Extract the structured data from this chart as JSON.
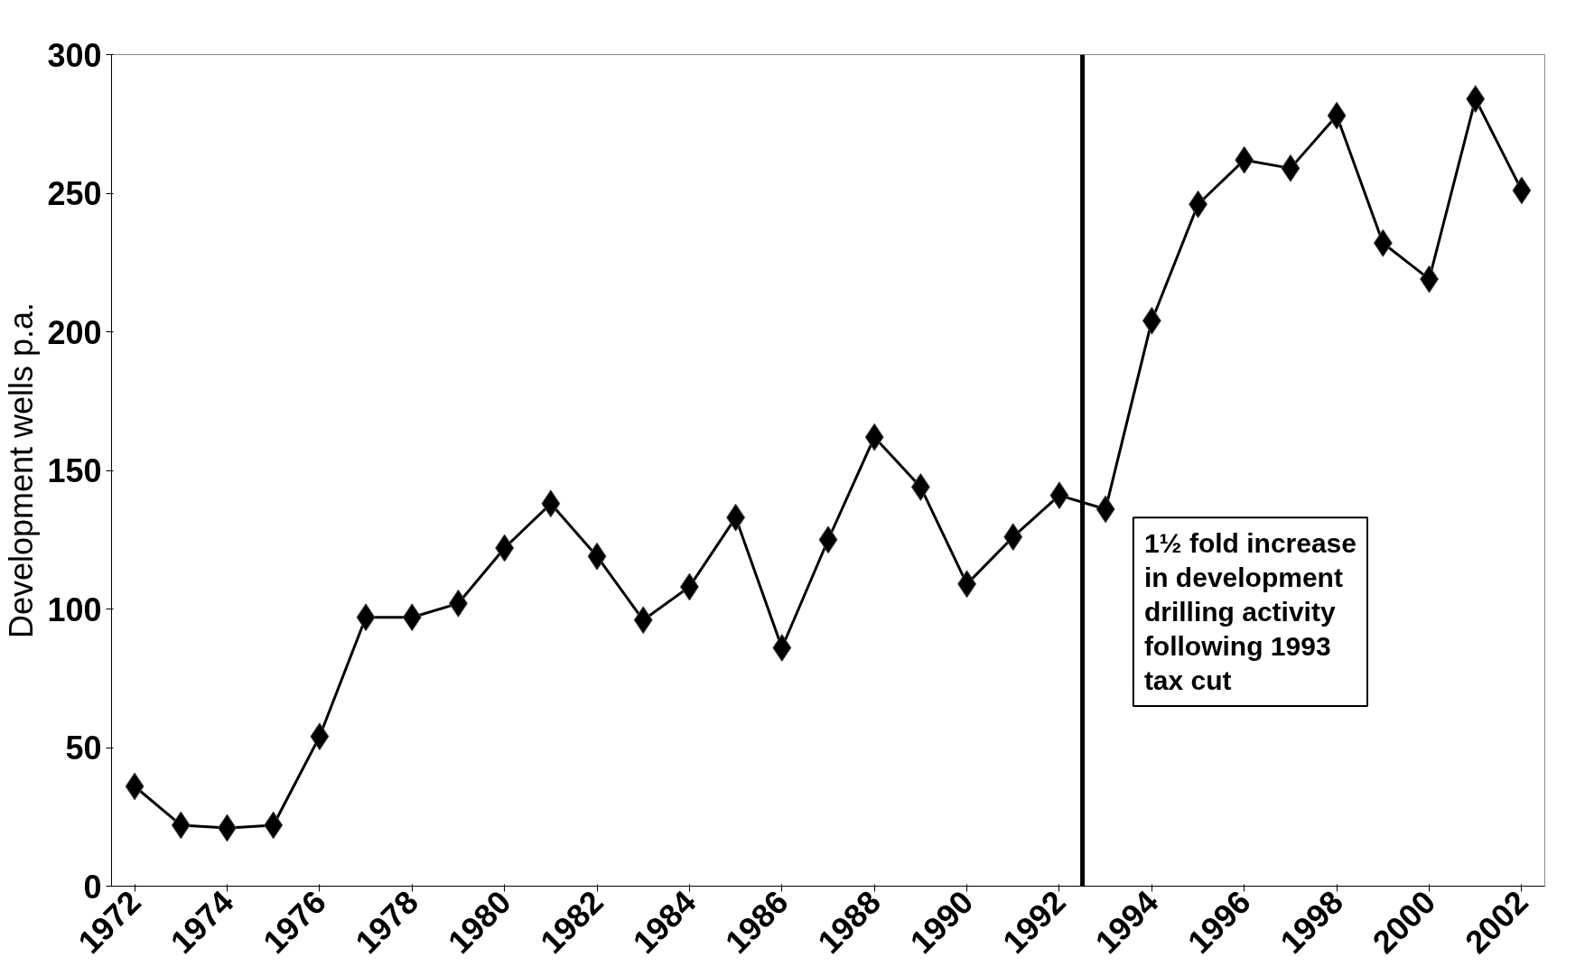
{
  "chart_data": {
    "type": "line",
    "ylabel": "Development wells p.a.",
    "x": [
      1972,
      1973,
      1974,
      1975,
      1976,
      1977,
      1978,
      1979,
      1980,
      1981,
      1982,
      1983,
      1984,
      1985,
      1986,
      1987,
      1988,
      1989,
      1990,
      1991,
      1992,
      1993,
      1994,
      1995,
      1996,
      1997,
      1998,
      1999,
      2000,
      2001,
      2002
    ],
    "series": [
      {
        "color": "#000000",
        "values": [
          36,
          22,
          21,
          22,
          54,
          97,
          97,
          102,
          122,
          138,
          119,
          96,
          108,
          133,
          86,
          125,
          162,
          144,
          109,
          126,
          141,
          136,
          204,
          246,
          262,
          259,
          278,
          232,
          219,
          284,
          251
        ]
      }
    ],
    "xlim": [
      1971.5,
      2002.5
    ],
    "xticks": [
      1972,
      1974,
      1976,
      1978,
      1980,
      1982,
      1984,
      1986,
      1988,
      1990,
      1992,
      1994,
      1996,
      1998,
      2000,
      2002
    ],
    "ylim": [
      0,
      300
    ],
    "yticks": [
      0,
      50,
      100,
      150,
      200,
      250,
      300
    ],
    "ref_lines": [
      {
        "axis": "x",
        "value": 1992.5,
        "color": "#000000"
      }
    ],
    "annotations": [
      "1½ fold increase\nin development\ndrilling activity\nfollowing 1993\ntax cut"
    ],
    "marker": "diamond",
    "line_style": "solid",
    "grid": false
  }
}
